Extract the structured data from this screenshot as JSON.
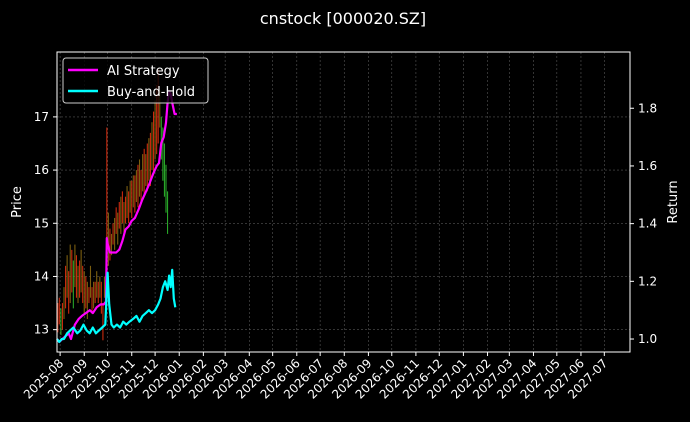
{
  "chart_data": {
    "type": "line",
    "title": "cnstock [000020.SZ]",
    "ylabel_left": "Price",
    "ylabel_right": "Return",
    "xlabel": "",
    "grid": true,
    "legend_position": "top-left",
    "background": "#000000",
    "x_tick_labels": [
      "2025-08",
      "2025-09",
      "2025-10",
      "2025-11",
      "2025-12",
      "2026-01",
      "2026-02",
      "2026-03",
      "2026-04",
      "2026-05",
      "2026-06",
      "2026-07",
      "2026-08",
      "2026-09",
      "2026-10",
      "2026-11",
      "2026-12",
      "2027-01",
      "2027-02",
      "2027-03",
      "2027-04",
      "2027-05",
      "2027-06",
      "2027-07"
    ],
    "x_range": [
      "2025-07-28",
      "2027-08-03"
    ],
    "left_axis": {
      "ylim": [
        12.58,
        18.22
      ],
      "ticks": [
        13,
        14,
        15,
        16,
        17
      ]
    },
    "right_axis": {
      "ylim": [
        0.955,
        1.995
      ],
      "ticks": [
        1.0,
        1.2,
        1.4,
        1.6,
        1.8
      ],
      "tick_labels": [
        "1.0",
        "1.2",
        "1.4",
        "1.6",
        "1.8"
      ]
    },
    "series": [
      {
        "name": "AI Strategy",
        "axis": "right",
        "color": "#ff00ff",
        "x": [
          "2025-07-28",
          "2025-07-31",
          "2025-08-04",
          "2025-08-08",
          "2025-08-12",
          "2025-08-15",
          "2025-08-20",
          "2025-08-25",
          "2025-08-29",
          "2025-09-03",
          "2025-09-08",
          "2025-09-12",
          "2025-09-17",
          "2025-09-22",
          "2025-09-26",
          "2025-09-29",
          "2025-09-30",
          "2025-10-01",
          "2025-10-04",
          "2025-10-08",
          "2025-10-12",
          "2025-10-16",
          "2025-10-20",
          "2025-10-24",
          "2025-10-28",
          "2025-11-01",
          "2025-11-05",
          "2025-11-10",
          "2025-11-14",
          "2025-11-19",
          "2025-11-24",
          "2025-11-28",
          "2025-12-03",
          "2025-12-06",
          "2025-12-09",
          "2025-12-12",
          "2025-12-15",
          "2025-12-17",
          "2025-12-19",
          "2025-12-21",
          "2025-12-23",
          "2025-12-26",
          "2025-12-29"
        ],
        "values": [
          1.0,
          0.99,
          1.0,
          1.01,
          1.02,
          1.0,
          1.05,
          1.07,
          1.08,
          1.09,
          1.1,
          1.09,
          1.11,
          1.12,
          1.12,
          1.13,
          1.35,
          1.33,
          1.3,
          1.3,
          1.3,
          1.31,
          1.34,
          1.38,
          1.39,
          1.41,
          1.42,
          1.45,
          1.48,
          1.51,
          1.54,
          1.57,
          1.6,
          1.61,
          1.68,
          1.7,
          1.75,
          1.82,
          1.86,
          1.85,
          1.82,
          1.78,
          1.78
        ]
      },
      {
        "name": "Buy-and-Hold",
        "axis": "right",
        "color": "#00ffff",
        "x": [
          "2025-07-28",
          "2025-07-31",
          "2025-08-03",
          "2025-08-06",
          "2025-08-10",
          "2025-08-14",
          "2025-08-18",
          "2025-08-23",
          "2025-08-27",
          "2025-08-31",
          "2025-09-04",
          "2025-09-08",
          "2025-09-12",
          "2025-09-16",
          "2025-09-20",
          "2025-09-24",
          "2025-09-28",
          "2025-10-01",
          "2025-10-03",
          "2025-10-06",
          "2025-10-09",
          "2025-10-13",
          "2025-10-17",
          "2025-10-21",
          "2025-10-25",
          "2025-10-29",
          "2025-11-03",
          "2025-11-07",
          "2025-11-11",
          "2025-11-15",
          "2025-11-19",
          "2025-11-23",
          "2025-11-27",
          "2025-12-01",
          "2025-12-05",
          "2025-12-08",
          "2025-12-11",
          "2025-12-14",
          "2025-12-17",
          "2025-12-19",
          "2025-12-21",
          "2025-12-23",
          "2025-12-25",
          "2025-12-27"
        ],
        "values": [
          1.0,
          0.99,
          1.0,
          1.0,
          1.02,
          1.03,
          1.04,
          1.02,
          1.03,
          1.05,
          1.03,
          1.02,
          1.04,
          1.02,
          1.03,
          1.04,
          1.05,
          1.23,
          1.12,
          1.05,
          1.04,
          1.05,
          1.04,
          1.06,
          1.05,
          1.06,
          1.07,
          1.08,
          1.06,
          1.08,
          1.09,
          1.1,
          1.09,
          1.1,
          1.12,
          1.14,
          1.18,
          1.2,
          1.17,
          1.22,
          1.18,
          1.24,
          1.14,
          1.11
        ]
      }
    ],
    "price_bars": {
      "axis": "left",
      "colors": {
        "up": "#2db82d",
        "down": "#e03010",
        "mixed": "#8a6a12"
      },
      "points": [
        [
          "2025-07-29",
          12.95,
          13.5,
          "down"
        ],
        [
          "2025-07-31",
          13.1,
          13.6,
          "down"
        ],
        [
          "2025-08-02",
          12.9,
          13.4,
          "up"
        ],
        [
          "2025-08-04",
          13.0,
          13.5,
          "down"
        ],
        [
          "2025-08-06",
          13.2,
          13.8,
          "mixed"
        ],
        [
          "2025-08-08",
          13.4,
          14.2,
          "down"
        ],
        [
          "2025-08-10",
          13.6,
          14.4,
          "mixed"
        ],
        [
          "2025-08-12",
          13.3,
          14.1,
          "down"
        ],
        [
          "2025-08-14",
          13.5,
          14.6,
          "mixed"
        ],
        [
          "2025-08-16",
          13.7,
          14.5,
          "down"
        ],
        [
          "2025-08-18",
          13.4,
          14.3,
          "up"
        ],
        [
          "2025-08-20",
          13.8,
          14.6,
          "mixed"
        ],
        [
          "2025-08-22",
          13.6,
          14.4,
          "down"
        ],
        [
          "2025-08-24",
          13.5,
          14.2,
          "mixed"
        ],
        [
          "2025-08-26",
          13.6,
          14.3,
          "down"
        ],
        [
          "2025-08-28",
          13.7,
          14.5,
          "mixed"
        ],
        [
          "2025-08-30",
          13.5,
          14.2,
          "down"
        ],
        [
          "2025-09-01",
          13.3,
          14.1,
          "mixed"
        ],
        [
          "2025-09-03",
          13.4,
          14.0,
          "down"
        ],
        [
          "2025-09-05",
          13.2,
          13.9,
          "mixed"
        ],
        [
          "2025-09-07",
          13.5,
          13.8,
          "down"
        ],
        [
          "2025-09-09",
          13.6,
          14.2,
          "mixed"
        ],
        [
          "2025-09-11",
          13.3,
          13.8,
          "down"
        ],
        [
          "2025-09-13",
          13.4,
          13.9,
          "mixed"
        ],
        [
          "2025-09-15",
          13.5,
          13.9,
          "down"
        ],
        [
          "2025-09-17",
          13.6,
          14.1,
          "mixed"
        ],
        [
          "2025-09-19",
          13.5,
          13.9,
          "down"
        ],
        [
          "2025-09-21",
          13.6,
          14.0,
          "mixed"
        ],
        [
          "2025-09-23",
          13.3,
          13.9,
          "down"
        ],
        [
          "2025-09-25",
          12.8,
          13.5,
          "down"
        ],
        [
          "2025-09-27",
          13.6,
          14.0,
          "mixed"
        ],
        [
          "2025-09-30",
          14.0,
          16.8,
          "down"
        ],
        [
          "2025-10-02",
          14.2,
          15.2,
          "mixed"
        ],
        [
          "2025-10-04",
          14.3,
          14.9,
          "down"
        ],
        [
          "2025-10-06",
          14.4,
          14.8,
          "mixed"
        ],
        [
          "2025-10-08",
          14.6,
          15.0,
          "down"
        ],
        [
          "2025-10-10",
          14.5,
          15.1,
          "mixed"
        ],
        [
          "2025-10-12",
          14.8,
          15.3,
          "down"
        ],
        [
          "2025-10-14",
          14.6,
          15.2,
          "mixed"
        ],
        [
          "2025-10-16",
          14.9,
          15.4,
          "down"
        ],
        [
          "2025-10-18",
          14.8,
          15.5,
          "mixed"
        ],
        [
          "2025-10-20",
          15.0,
          15.6,
          "down"
        ],
        [
          "2025-10-22",
          14.8,
          15.4,
          "mixed"
        ],
        [
          "2025-10-24",
          15.0,
          15.5,
          "down"
        ],
        [
          "2025-10-26",
          15.1,
          15.7,
          "mixed"
        ],
        [
          "2025-10-28",
          15.0,
          15.6,
          "down"
        ],
        [
          "2025-10-30",
          15.2,
          15.8,
          "mixed"
        ],
        [
          "2025-11-01",
          15.1,
          15.8,
          "down"
        ],
        [
          "2025-11-03",
          15.3,
          15.9,
          "mixed"
        ],
        [
          "2025-11-05",
          15.2,
          15.9,
          "down"
        ],
        [
          "2025-11-07",
          15.4,
          16.0,
          "mixed"
        ],
        [
          "2025-11-09",
          15.3,
          16.1,
          "down"
        ],
        [
          "2025-11-11",
          15.5,
          16.2,
          "mixed"
        ],
        [
          "2025-11-13",
          15.4,
          16.0,
          "down"
        ],
        [
          "2025-11-15",
          15.6,
          16.3,
          "mixed"
        ],
        [
          "2025-11-17",
          15.5,
          16.4,
          "down"
        ],
        [
          "2025-11-19",
          15.7,
          16.3,
          "mixed"
        ],
        [
          "2025-11-21",
          15.6,
          16.5,
          "down"
        ],
        [
          "2025-11-23",
          15.8,
          16.6,
          "mixed"
        ],
        [
          "2025-11-25",
          15.7,
          16.7,
          "down"
        ],
        [
          "2025-11-27",
          16.0,
          16.9,
          "mixed"
        ],
        [
          "2025-11-29",
          15.9,
          17.1,
          "down"
        ],
        [
          "2025-12-01",
          16.2,
          17.3,
          "mixed"
        ],
        [
          "2025-12-03",
          16.3,
          17.6,
          "down"
        ],
        [
          "2025-12-05",
          16.5,
          17.9,
          "down"
        ],
        [
          "2025-12-07",
          16.8,
          17.5,
          "mixed"
        ],
        [
          "2025-12-09",
          16.2,
          17.0,
          "up"
        ],
        [
          "2025-12-11",
          15.8,
          16.8,
          "up"
        ],
        [
          "2025-12-13",
          15.5,
          16.5,
          "up"
        ],
        [
          "2025-12-15",
          15.2,
          16.1,
          "up"
        ],
        [
          "2025-12-17",
          14.8,
          15.6,
          "up"
        ]
      ]
    }
  }
}
